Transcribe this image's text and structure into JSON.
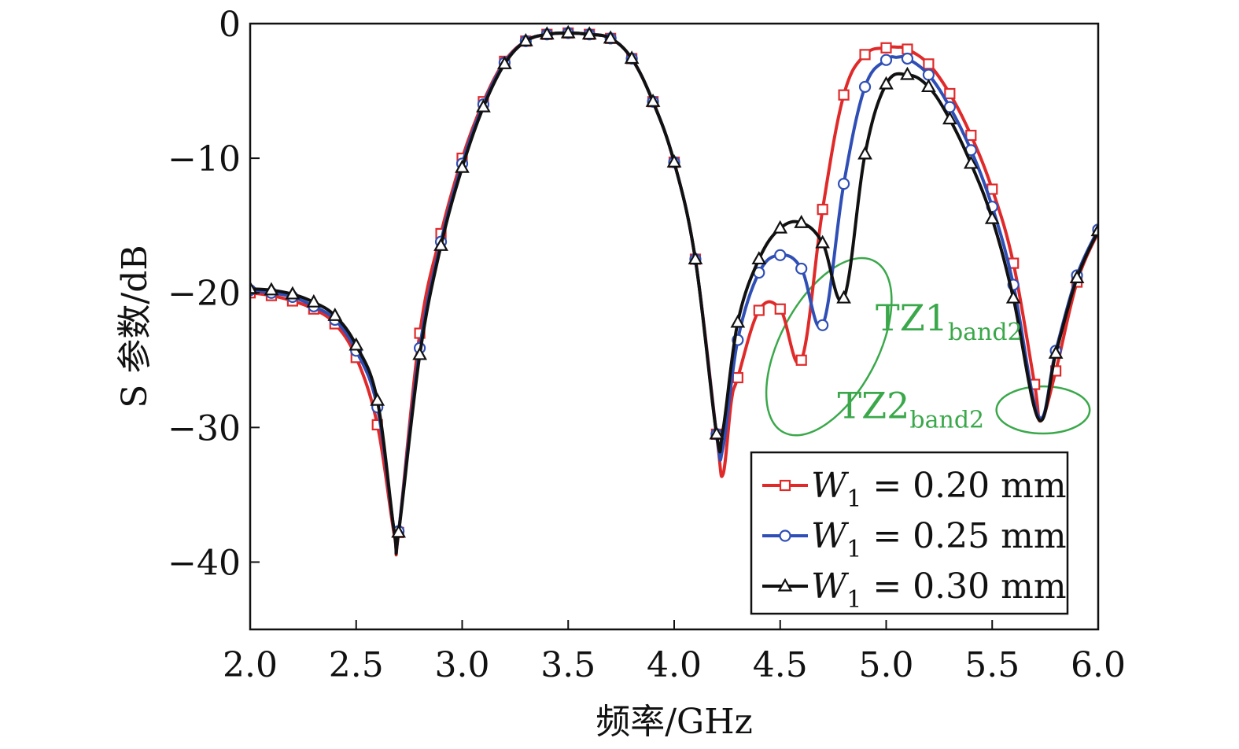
{
  "chart_data": {
    "type": "line",
    "xlabel": "频率/GHz",
    "ylabel": "S 参数/dB",
    "xlim": [
      2.0,
      6.0
    ],
    "ylim": [
      -45,
      0
    ],
    "x_ticks": [
      2.0,
      2.5,
      3.0,
      3.5,
      4.0,
      4.5,
      5.0,
      5.5,
      6.0
    ],
    "x_tick_labels": [
      "2.0",
      "2.5",
      "3.0",
      "3.5",
      "4.0",
      "4.5",
      "5.0",
      "5.5",
      "6.0"
    ],
    "y_ticks": [
      0,
      -10,
      -20,
      -30,
      -40
    ],
    "y_tick_labels": [
      "0",
      "−10",
      "−20",
      "−30",
      "−40"
    ],
    "grid": false,
    "legend_position": "bottom-right",
    "annotations": [
      {
        "text": "TZ1",
        "subscript": "band2",
        "x": 4.95,
        "y": -22.8,
        "color": "#3aa84a"
      },
      {
        "text": "TZ2",
        "subscript": "band2",
        "x": 4.77,
        "y": -29.3,
        "color": "#3aa84a"
      }
    ],
    "ellipses": [
      {
        "cx": 4.73,
        "cy": -24.0,
        "rx": 0.23,
        "ry": 7.2,
        "angle": 28,
        "color": "#3aa84a"
      },
      {
        "cx": 5.74,
        "cy": -28.7,
        "rx": 0.22,
        "ry": 1.75,
        "angle": 0,
        "color": "#3aa84a"
      }
    ],
    "series": [
      {
        "label_var": "W",
        "label_sub": "1",
        "label_rest": " = 0.20 mm",
        "color": "#e02a2a",
        "marker": "square",
        "x": [
          2.0,
          2.1,
          2.2,
          2.3,
          2.4,
          2.5,
          2.6,
          2.68,
          2.7,
          2.8,
          2.9,
          3.0,
          3.1,
          3.2,
          3.3,
          3.4,
          3.5,
          3.6,
          3.7,
          3.8,
          3.9,
          4.0,
          4.1,
          4.2,
          4.23,
          4.27,
          4.3,
          4.4,
          4.5,
          4.6,
          4.7,
          4.8,
          4.9,
          5.0,
          5.05,
          5.1,
          5.2,
          5.3,
          5.4,
          5.5,
          5.6,
          5.7,
          5.73,
          5.8,
          5.9,
          6.0
        ],
        "y": [
          -20.0,
          -20.2,
          -20.6,
          -21.2,
          -22.3,
          -24.8,
          -29.8,
          -38.0,
          -37.8,
          -23.0,
          -15.6,
          -10.0,
          -5.8,
          -2.8,
          -1.3,
          -0.8,
          -0.7,
          -0.8,
          -1.1,
          -2.6,
          -5.8,
          -10.3,
          -17.5,
          -30.5,
          -33.5,
          -28.0,
          -26.3,
          -21.3,
          -21.2,
          -25.0,
          -13.8,
          -5.3,
          -2.3,
          -1.8,
          -1.75,
          -1.9,
          -3.0,
          -5.2,
          -8.3,
          -12.3,
          -17.8,
          -26.8,
          -29.5,
          -25.8,
          -19.2,
          -15.5
        ]
      },
      {
        "label_var": "W",
        "label_sub": "1",
        "label_rest": " = 0.25 mm",
        "color": "#2f4fb6",
        "marker": "circle",
        "x": [
          2.0,
          2.1,
          2.2,
          2.3,
          2.4,
          2.5,
          2.6,
          2.68,
          2.7,
          2.8,
          2.9,
          3.0,
          3.1,
          3.2,
          3.3,
          3.4,
          3.5,
          3.6,
          3.7,
          3.8,
          3.9,
          4.0,
          4.1,
          4.2,
          4.23,
          4.3,
          4.4,
          4.5,
          4.6,
          4.7,
          4.8,
          4.9,
          5.0,
          5.05,
          5.1,
          5.2,
          5.3,
          5.4,
          5.5,
          5.6,
          5.72,
          5.8,
          5.9,
          6.0
        ],
        "y": [
          -19.8,
          -20.0,
          -20.3,
          -21.0,
          -22.0,
          -24.3,
          -28.5,
          -37.8,
          -37.7,
          -24.1,
          -16.2,
          -10.4,
          -6.0,
          -2.9,
          -1.3,
          -0.8,
          -0.7,
          -0.8,
          -1.1,
          -2.6,
          -5.8,
          -10.3,
          -17.5,
          -30.5,
          -31.5,
          -23.5,
          -18.5,
          -17.2,
          -18.2,
          -22.4,
          -11.9,
          -4.7,
          -2.7,
          -2.5,
          -2.6,
          -3.8,
          -6.2,
          -9.4,
          -13.6,
          -19.4,
          -29.2,
          -24.3,
          -18.7,
          -15.3
        ]
      },
      {
        "label_var": "W",
        "label_sub": "1",
        "label_rest": " = 0.30 mm",
        "color": "#111111",
        "marker": "triangle",
        "x": [
          2.0,
          2.1,
          2.2,
          2.3,
          2.4,
          2.5,
          2.6,
          2.68,
          2.7,
          2.8,
          2.9,
          3.0,
          3.1,
          3.2,
          3.3,
          3.4,
          3.5,
          3.6,
          3.7,
          3.8,
          3.9,
          4.0,
          4.1,
          4.2,
          4.23,
          4.3,
          4.4,
          4.5,
          4.6,
          4.7,
          4.8,
          4.9,
          5.0,
          5.1,
          5.2,
          5.3,
          5.4,
          5.5,
          5.6,
          5.72,
          5.8,
          5.9,
          6.0
        ],
        "y": [
          -19.7,
          -19.8,
          -20.1,
          -20.7,
          -21.7,
          -23.9,
          -28.0,
          -37.8,
          -37.8,
          -24.6,
          -16.5,
          -10.7,
          -6.2,
          -3.0,
          -1.3,
          -0.8,
          -0.7,
          -0.8,
          -1.1,
          -2.6,
          -5.8,
          -10.3,
          -17.5,
          -30.5,
          -30.2,
          -22.2,
          -17.5,
          -15.2,
          -14.8,
          -16.3,
          -20.4,
          -9.7,
          -4.5,
          -3.8,
          -4.7,
          -7.1,
          -10.4,
          -14.5,
          -20.4,
          -29.4,
          -24.5,
          -18.9,
          -15.4
        ]
      }
    ]
  }
}
